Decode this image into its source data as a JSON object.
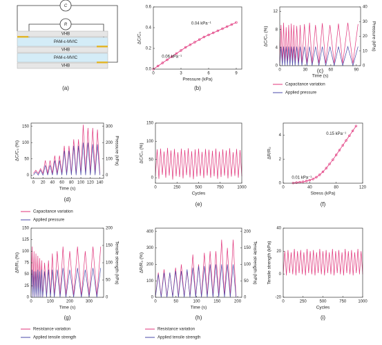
{
  "diagram": {
    "labels": [
      "C",
      "R"
    ],
    "layers": [
      "VHB",
      "PAM-ε-MVIC",
      "VHB",
      "PAM-ε-MVIC",
      "VHB"
    ],
    "panel_label": "(a)"
  },
  "chart_data": [
    {
      "type": "scatter",
      "panel_label": "(b)",
      "x_label": "Pressure (kPa)",
      "y_label": "ΔC/C₀",
      "annotations": [
        "0.04 kPa⁻¹",
        "0.06 kPa⁻¹"
      ],
      "xlim": [
        0,
        9.6
      ],
      "xticks": [
        0,
        3,
        6,
        9
      ],
      "ylim": [
        0,
        0.6
      ],
      "yticks": [
        {
          "value": 0,
          "label": "0.0"
        },
        {
          "value": 0.2,
          "label": "0.2"
        },
        {
          "value": 0.4,
          "label": "0.4"
        },
        {
          "value": 0.6,
          "label": "0.6"
        }
      ],
      "x": [
        0,
        0.5,
        1,
        1.5,
        2,
        2.5,
        3,
        3.5,
        4,
        4.5,
        5,
        5.5,
        6,
        6.5,
        7,
        7.5,
        8,
        8.5,
        9
      ],
      "series": [
        {
          "color": "#e0337a",
          "values": [
            0,
            0.03,
            0.06,
            0.09,
            0.12,
            0.15,
            0.18,
            0.21,
            0.235,
            0.26,
            0.285,
            0.31,
            0.33,
            0.35,
            0.37,
            0.39,
            0.41,
            0.43,
            0.45
          ]
        }
      ]
    },
    {
      "type": "line",
      "panel_label": "(c)",
      "x_label": "Time (s)",
      "y_label": "ΔC/C₀ (%)",
      "y2_label": "Pressure (kPa)",
      "legend": "below",
      "xlim": [
        0,
        95
      ],
      "xticks": [
        0,
        30,
        60,
        90
      ],
      "ylim": [
        0,
        13
      ],
      "yticks": [
        0,
        4,
        8,
        12
      ],
      "y2lim": [
        0,
        40
      ],
      "y2ticks": [
        0,
        10,
        20,
        30,
        40
      ],
      "x": [
        0,
        1.5,
        3,
        4.5,
        6,
        7.5,
        9,
        10.5,
        12,
        13.5,
        15,
        16.5,
        18,
        20,
        22,
        24,
        26,
        29,
        32,
        35,
        38,
        42,
        46,
        50,
        54,
        59,
        64,
        69,
        74,
        80,
        86,
        92
      ],
      "series": [
        {
          "name": "Capacitance variation",
          "color": "#e0337a",
          "values": [
            0.5,
            9,
            0.5,
            9.5,
            0.5,
            8.5,
            0.5,
            9,
            0.5,
            9.3,
            0.5,
            9,
            0.5,
            8.8,
            0.5,
            9,
            0.5,
            9.2,
            0.5,
            9.5,
            0.5,
            9,
            0.5,
            9.4,
            0.5,
            9,
            0.5,
            9.3,
            0.5,
            9.5,
            0.5,
            9.2
          ]
        },
        {
          "name": "Applied pressure",
          "color": "#4a4aa8",
          "axis": "y2",
          "values": [
            0,
            13,
            0,
            13,
            0,
            13,
            0,
            13,
            0,
            13,
            0,
            13,
            0,
            13,
            0,
            13,
            0,
            13,
            0,
            13,
            0,
            13,
            0,
            13,
            0,
            13,
            0,
            13,
            0,
            13,
            0,
            13
          ]
        }
      ]
    },
    {
      "type": "line",
      "panel_label": "(d)",
      "x_label": "Time (s)",
      "y_label": "ΔC/C₀ (%)",
      "y2_label": "Pressure (kPa)",
      "legend": "below",
      "xlim": [
        -5,
        148
      ],
      "xticks": [
        0,
        20,
        40,
        60,
        80,
        100,
        120,
        140
      ],
      "ylim": [
        -10,
        160
      ],
      "yticks": [
        0,
        50,
        100,
        150
      ],
      "y2lim": [
        -20,
        320
      ],
      "y2ticks": [
        0,
        100,
        200,
        300
      ],
      "x": [
        0,
        5,
        10,
        15,
        20,
        25,
        30,
        35,
        40,
        45,
        50,
        55,
        60,
        65,
        70,
        75,
        80,
        85,
        90,
        95,
        100,
        105,
        110,
        115,
        120,
        125,
        130,
        135,
        140
      ],
      "series": [
        {
          "name": "Capacitance variation",
          "color": "#e0337a",
          "values": [
            5,
            15,
            5,
            20,
            5,
            45,
            5,
            45,
            5,
            60,
            5,
            60,
            5,
            90,
            5,
            90,
            5,
            110,
            5,
            110,
            5,
            155,
            5,
            145,
            5,
            145,
            5,
            140,
            5
          ]
        },
        {
          "name": "Applied pressure",
          "color": "#4a4aa8",
          "axis": "y2",
          "values": [
            0,
            20,
            0,
            30,
            0,
            60,
            0,
            60,
            0,
            90,
            0,
            90,
            0,
            150,
            0,
            150,
            0,
            180,
            0,
            180,
            0,
            200,
            0,
            200,
            0,
            190,
            0,
            190,
            0
          ]
        }
      ]
    },
    {
      "type": "line",
      "panel_label": "(e)",
      "x_label": "Cycles",
      "y_label": "ΔC/C₀ (%)",
      "xlim": [
        0,
        1000
      ],
      "xticks": [
        0,
        250,
        500,
        750,
        1000
      ],
      "ylim": [
        -15,
        150
      ],
      "yticks": [
        0,
        50,
        100,
        150
      ],
      "x": [
        0,
        20,
        40,
        60,
        80,
        100,
        120,
        140,
        160,
        180,
        200,
        220,
        240,
        260,
        280,
        300,
        320,
        340,
        360,
        380,
        400,
        420,
        440,
        460,
        480,
        500,
        520,
        540,
        560,
        580,
        600,
        620,
        640,
        660,
        680,
        700,
        720,
        740,
        760,
        780,
        800,
        820,
        840,
        860,
        880,
        900,
        920,
        940,
        960,
        980,
        1000
      ],
      "series": [
        {
          "color": "#e0337a",
          "values": [
            5,
            78,
            -3,
            80,
            8,
            72,
            0,
            82,
            6,
            75,
            -5,
            79,
            4,
            70,
            2,
            80,
            -2,
            76,
            7,
            81,
            1,
            73,
            -4,
            78,
            3,
            80,
            5,
            71,
            -1,
            79,
            6,
            77,
            0,
            74,
            4,
            80,
            -3,
            72,
            2,
            78,
            6,
            75,
            -2,
            81,
            3,
            70,
            5,
            79,
            0,
            76,
            4
          ]
        }
      ]
    },
    {
      "type": "scatter",
      "panel_label": "(f)",
      "x_label": "Stress (kPa)",
      "y_label": "ΔR/R₀",
      "annotations": [
        "0.15 kPa⁻¹",
        "0.01 kPa⁻¹"
      ],
      "xlim": [
        0,
        120
      ],
      "xticks": [
        0,
        40,
        80,
        120
      ],
      "ylim": [
        0,
        5
      ],
      "yticks": [
        0,
        2,
        4
      ],
      "x": [
        15,
        20,
        25,
        30,
        35,
        40,
        45,
        50,
        55,
        60,
        65,
        70,
        75,
        80,
        85,
        90,
        95,
        100,
        105,
        110
      ],
      "series": [
        {
          "color": "#e0337a",
          "values": [
            0.02,
            0.05,
            0.08,
            0.12,
            0.18,
            0.25,
            0.35,
            0.5,
            0.7,
            0.95,
            1.25,
            1.6,
            1.95,
            2.35,
            2.75,
            3.15,
            3.55,
            3.95,
            4.35,
            4.75
          ]
        }
      ]
    },
    {
      "type": "line",
      "panel_label": "(g)",
      "x_label": "Time (s)",
      "y_label": "ΔR/R₀ (%)",
      "y2_label": "Tensile strength (kPa)",
      "legend": "below",
      "xlim": [
        0,
        375
      ],
      "xticks": [
        0,
        100,
        200,
        300
      ],
      "ylim": [
        0,
        150
      ],
      "yticks": [
        0,
        25,
        50,
        75,
        100,
        125,
        150
      ],
      "y2lim": [
        0,
        200
      ],
      "y2ticks": [
        0,
        50,
        100,
        150,
        200
      ],
      "x": [
        0,
        5,
        10,
        15,
        20,
        25,
        30,
        35,
        40,
        45,
        50,
        55,
        60,
        70,
        80,
        90,
        100,
        110,
        120,
        135,
        150,
        165,
        180,
        200,
        220,
        240,
        260,
        280,
        300,
        320,
        340,
        360
      ],
      "series": [
        {
          "name": "Resistance variation",
          "color": "#e0337a",
          "values": [
            2,
            110,
            2,
            100,
            2,
            95,
            2,
            90,
            2,
            85,
            2,
            80,
            2,
            75,
            2,
            80,
            2,
            95,
            2,
            100,
            2,
            110,
            2,
            100,
            2,
            110,
            2,
            100,
            2,
            110,
            2,
            110
          ]
        },
        {
          "name": "Applied tensile strength",
          "color": "#4a4aa8",
          "axis": "y2",
          "values": [
            0,
            80,
            0,
            75,
            0,
            75,
            0,
            80,
            0,
            75,
            0,
            80,
            0,
            75,
            0,
            80,
            0,
            80,
            0,
            80,
            0,
            85,
            0,
            80,
            0,
            85,
            0,
            80,
            0,
            85,
            0,
            85
          ]
        }
      ]
    },
    {
      "type": "line",
      "panel_label": "(h)",
      "x_label": "Time (s)",
      "y_label": "ΔR/R₀ (%)",
      "y2_label": "Tensile strength (kPa)",
      "legend": "below",
      "xlim": [
        0,
        210
      ],
      "xticks": [
        0,
        50,
        100,
        150,
        200
      ],
      "ylim": [
        0,
        420
      ],
      "yticks": [
        0,
        100,
        200,
        300,
        400
      ],
      "y2lim": [
        0,
        210
      ],
      "y2ticks": [
        0,
        50,
        100,
        150,
        200
      ],
      "x": [
        0,
        7,
        14,
        21,
        28,
        35,
        42,
        49,
        56,
        63,
        70,
        77,
        84,
        91,
        98,
        105,
        112,
        119,
        126,
        133,
        140,
        147,
        154,
        161,
        168,
        175,
        182,
        189,
        196
      ],
      "series": [
        {
          "name": "Resistance variation",
          "color": "#e0337a",
          "values": [
            5,
            150,
            5,
            170,
            5,
            150,
            5,
            180,
            5,
            200,
            5,
            160,
            5,
            260,
            5,
            200,
            5,
            270,
            5,
            280,
            5,
            280,
            5,
            350,
            5,
            300,
            5,
            350,
            5
          ]
        },
        {
          "name": "Applied tensile strength",
          "color": "#4a4aa8",
          "axis": "y2",
          "values": [
            0,
            70,
            0,
            75,
            0,
            75,
            0,
            80,
            0,
            80,
            0,
            85,
            0,
            90,
            0,
            95,
            0,
            95,
            0,
            100,
            0,
            100,
            0,
            100,
            0,
            100,
            0,
            100,
            0
          ]
        }
      ]
    },
    {
      "type": "line",
      "panel_label": "(i)",
      "x_label": "Cycles",
      "y_label": "Tensile strength (kPa)",
      "xlim": [
        0,
        1000
      ],
      "xticks": [
        0,
        250,
        500,
        750,
        1000
      ],
      "ylim": [
        -20,
        40
      ],
      "yticks": [
        -20,
        0,
        20,
        40
      ],
      "x": [
        0,
        20,
        40,
        60,
        80,
        100,
        120,
        140,
        160,
        180,
        200,
        220,
        240,
        260,
        280,
        300,
        320,
        340,
        360,
        380,
        400,
        420,
        440,
        460,
        480,
        500,
        520,
        540,
        560,
        580,
        600,
        620,
        640,
        660,
        680,
        700,
        720,
        740,
        760,
        780,
        800,
        820,
        840,
        860,
        880,
        900,
        920,
        940,
        960,
        980,
        1000
      ],
      "series": [
        {
          "color": "#e0337a",
          "values": [
            0,
            20,
            -1,
            21,
            1,
            19,
            0,
            22,
            -1,
            20,
            1,
            21,
            0,
            19,
            -1,
            22,
            1,
            20,
            0,
            21,
            -1,
            19,
            1,
            22,
            0,
            20,
            -1,
            21,
            1,
            19,
            0,
            22,
            -1,
            20,
            1,
            21,
            0,
            19,
            -1,
            22,
            1,
            20,
            0,
            21,
            -1,
            19,
            1,
            22,
            0,
            20,
            0
          ]
        }
      ]
    }
  ]
}
